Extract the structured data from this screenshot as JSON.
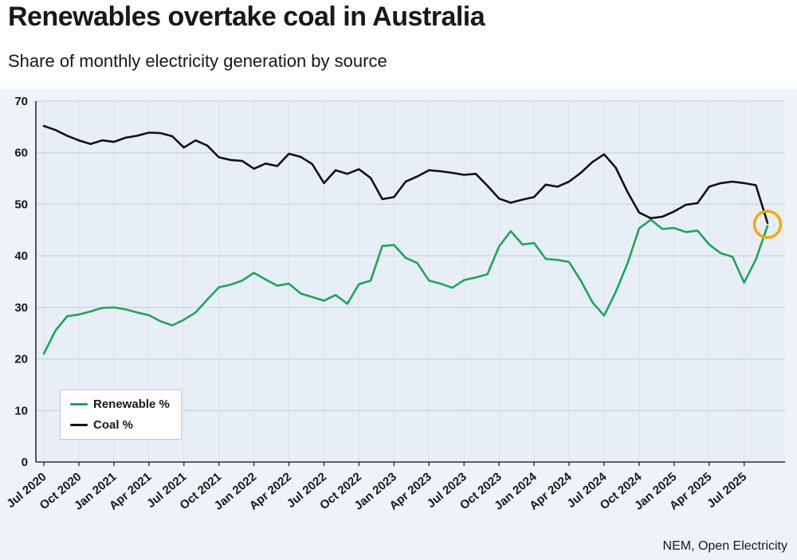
{
  "page": {
    "title": "Renewables overtake coal in Australia",
    "subtitle": "Share of monthly electricity generation by source",
    "source": "NEM, Open Electricity"
  },
  "colors": {
    "renewable": "#1fa45a",
    "coal": "#111111",
    "annotation": "#f3a712",
    "plot_background": "#e8eef5",
    "outer_background": "#eef3f8",
    "gridline": "#c4cfd9",
    "axis": "#2a2e33"
  },
  "chart_data": {
    "type": "line",
    "title": "Renewables overtake coal in Australia",
    "subtitle": "Share of monthly electricity generation by source",
    "xlabel": "",
    "ylabel": "",
    "ylim": [
      0,
      70
    ],
    "y_ticks": [
      0,
      10,
      20,
      30,
      40,
      50,
      60,
      70
    ],
    "x_tick_every": 3,
    "grid": true,
    "legend_position": "inside-bottom-left",
    "x": [
      "Jul 2020",
      "Aug 2020",
      "Sep 2020",
      "Oct 2020",
      "Nov 2020",
      "Dec 2020",
      "Jan 2021",
      "Feb 2021",
      "Mar 2021",
      "Apr 2021",
      "May 2021",
      "Jun 2021",
      "Jul 2021",
      "Aug 2021",
      "Sep 2021",
      "Oct 2021",
      "Nov 2021",
      "Dec 2021",
      "Jan 2022",
      "Feb 2022",
      "Mar 2022",
      "Apr 2022",
      "May 2022",
      "Jun 2022",
      "Jul 2022",
      "Aug 2022",
      "Sep 2022",
      "Oct 2022",
      "Nov 2022",
      "Dec 2022",
      "Jan 2023",
      "Feb 2023",
      "Mar 2023",
      "Apr 2023",
      "May 2023",
      "Jun 2023",
      "Jul 2023",
      "Aug 2023",
      "Sep 2023",
      "Oct 2023",
      "Nov 2023",
      "Dec 2023",
      "Jan 2024",
      "Feb 2024",
      "Mar 2024",
      "Apr 2024",
      "May 2024",
      "Jun 2024",
      "Jul 2024",
      "Aug 2024",
      "Sep 2024",
      "Oct 2024",
      "Nov 2024",
      "Dec 2024",
      "Jan 2025",
      "Feb 2025",
      "Mar 2025",
      "Apr 2025",
      "May 2025",
      "Jun 2025",
      "Jul 2025",
      "Aug 2025",
      "Sep 2025"
    ],
    "series": [
      {
        "name": "Renewable %",
        "color": "#1fa45a",
        "values": [
          21.0,
          25.5,
          28.3,
          28.6,
          29.2,
          29.9,
          30.0,
          29.6,
          29.0,
          28.5,
          27.3,
          26.5,
          27.6,
          29.0,
          31.5,
          33.9,
          34.4,
          35.2,
          36.7,
          35.4,
          34.2,
          34.6,
          32.7,
          32.0,
          31.3,
          32.4,
          30.7,
          34.5,
          35.2,
          41.9,
          42.1,
          39.6,
          38.6,
          35.2,
          34.6,
          33.8,
          35.3,
          35.8,
          36.4,
          41.8,
          44.8,
          42.2,
          42.5,
          39.4,
          39.2,
          38.8,
          35.2,
          31.0,
          28.4,
          33.0,
          38.5,
          45.3,
          47.0,
          45.2,
          45.4,
          44.6,
          44.9,
          42.2,
          40.5,
          39.8,
          34.8,
          39.3,
          45.8
        ]
      },
      {
        "name": "Coal %",
        "color": "#111111",
        "values": [
          65.2,
          64.4,
          63.3,
          62.4,
          61.7,
          62.4,
          62.1,
          62.9,
          63.3,
          63.9,
          63.8,
          63.2,
          61.0,
          62.4,
          61.4,
          59.1,
          58.6,
          58.4,
          56.9,
          57.9,
          57.4,
          59.8,
          59.2,
          57.8,
          54.1,
          56.6,
          55.9,
          56.8,
          55.1,
          51.0,
          51.4,
          54.4,
          55.4,
          56.6,
          56.4,
          56.1,
          55.7,
          55.9,
          53.6,
          51.1,
          50.3,
          50.9,
          51.4,
          53.8,
          53.4,
          54.4,
          56.1,
          58.2,
          59.7,
          57.1,
          52.4,
          48.4,
          47.3,
          47.6,
          48.6,
          49.9,
          50.2,
          53.4,
          54.1,
          54.4,
          54.1,
          53.7,
          46.4
        ]
      }
    ],
    "annotation": {
      "type": "circle",
      "x_index": 62,
      "y": 46.1,
      "color": "#f3a712",
      "note": "crossover highlight"
    }
  }
}
